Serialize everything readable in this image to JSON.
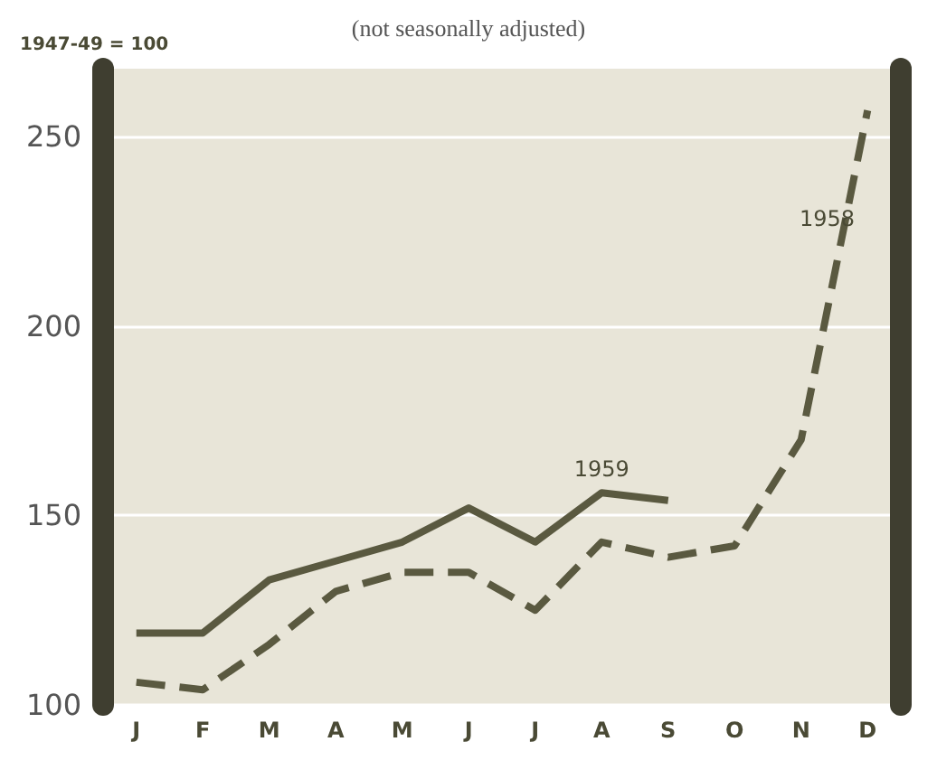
{
  "chart_data": {
    "type": "line",
    "subtitle": "(not seasonally adjusted)",
    "ylabel": "1947-49 = 100",
    "categories": [
      "J",
      "F",
      "M",
      "A",
      "M",
      "J",
      "J",
      "A",
      "S",
      "O",
      "N",
      "D"
    ],
    "series": [
      {
        "name": "1959",
        "color": "#5a5940",
        "line_style": "solid",
        "values": [
          119,
          119,
          133,
          138,
          143,
          152,
          143,
          156,
          154,
          null,
          null,
          null
        ]
      },
      {
        "name": "1958",
        "color": "#5a5940",
        "line_style": "dashed",
        "values": [
          106,
          104,
          116,
          130,
          135,
          135,
          125,
          143,
          139,
          142,
          170,
          257
        ]
      }
    ],
    "ylim": [
      100,
      268
    ],
    "yticks": [
      100,
      150,
      200,
      250
    ],
    "grid": "y",
    "legend": false,
    "marker": "none"
  }
}
